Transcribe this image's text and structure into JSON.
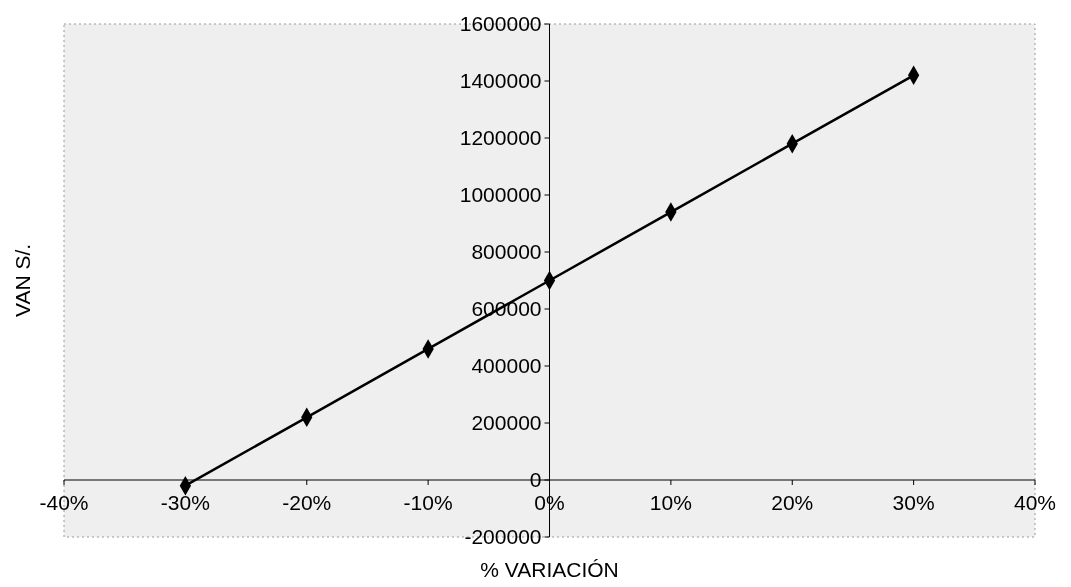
{
  "chart_data": {
    "type": "line",
    "xlabel": "% VARIACIÓN",
    "ylabel": "VAN S/.",
    "x": [
      -30,
      -20,
      -10,
      0,
      10,
      20,
      30
    ],
    "series": [
      {
        "color": "#000000",
        "values": [
          -20000,
          220000,
          460000,
          700000,
          940000,
          1180000,
          1420000
        ]
      }
    ],
    "xlim": [
      -40,
      40
    ],
    "xticks": [
      {
        "value": -40,
        "label": "-40%"
      },
      {
        "value": -30,
        "label": "-30%"
      },
      {
        "value": -20,
        "label": "-20%"
      },
      {
        "value": -10,
        "label": "-10%"
      },
      {
        "value": 0,
        "label": "0%"
      },
      {
        "value": 10,
        "label": "10%"
      },
      {
        "value": 20,
        "label": "20%"
      },
      {
        "value": 30,
        "label": "30%"
      },
      {
        "value": 40,
        "label": "40%"
      }
    ],
    "ylim": [
      -200000,
      1600000
    ],
    "yticks": [
      -200000,
      0,
      200000,
      400000,
      600000,
      800000,
      1000000,
      1200000,
      1400000,
      1600000
    ],
    "marker": "diamond",
    "line_style": "solid"
  }
}
